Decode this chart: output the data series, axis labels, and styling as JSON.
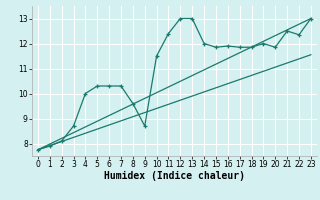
{
  "xlabel": "Humidex (Indice chaleur)",
  "bg_color": "#d4f0f0",
  "grid_color": "#ffffff",
  "line_color": "#1a7a6e",
  "xlim": [
    -0.5,
    23.5
  ],
  "ylim": [
    7.5,
    13.5
  ],
  "xticks": [
    0,
    1,
    2,
    3,
    4,
    5,
    6,
    7,
    8,
    9,
    10,
    11,
    12,
    13,
    14,
    15,
    16,
    17,
    18,
    19,
    20,
    21,
    22,
    23
  ],
  "yticks": [
    8,
    9,
    10,
    11,
    12,
    13
  ],
  "line1_x": [
    0,
    23
  ],
  "line1_y": [
    7.75,
    11.55
  ],
  "line2_x": [
    0,
    23
  ],
  "line2_y": [
    7.75,
    13.0
  ],
  "line3_x": [
    0,
    1,
    2,
    3,
    4,
    5,
    6,
    7,
    8,
    9,
    10,
    11,
    12,
    13,
    14,
    15,
    16,
    17,
    18,
    19,
    20,
    21,
    22,
    23
  ],
  "line3_y": [
    7.75,
    7.9,
    8.1,
    8.7,
    10.0,
    10.3,
    10.3,
    10.3,
    9.6,
    8.7,
    11.5,
    12.4,
    13.0,
    13.0,
    12.0,
    11.85,
    11.9,
    11.85,
    11.85,
    12.0,
    11.85,
    12.5,
    12.35,
    13.0
  ],
  "xlabel_fontsize": 7,
  "tick_fontsize": 5.5
}
